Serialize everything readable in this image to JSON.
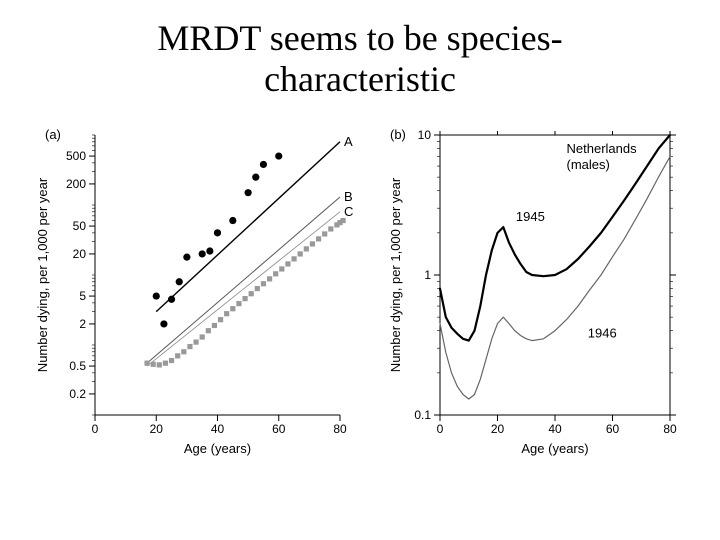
{
  "title_line1": "MRDT seems to be species-",
  "title_line2": "characteristic",
  "panel_a": {
    "tag": "(a)",
    "xlabel": "Age (years)",
    "ylabel": "Number dying, per 1,000 per year",
    "xlim": [
      0,
      80
    ],
    "xticks": [
      0,
      20,
      40,
      60,
      80
    ],
    "ylim_log10": [
      -1.0,
      3.0
    ],
    "yticks": [
      0.2,
      0.5,
      2,
      5,
      20,
      50,
      200,
      500
    ],
    "minor_yticks": [
      0.1,
      0.3,
      0.4,
      0.6,
      0.7,
      0.8,
      0.9,
      1,
      3,
      4,
      6,
      7,
      8,
      9,
      10,
      30,
      40,
      60,
      70,
      80,
      90,
      100,
      300,
      400,
      600,
      700,
      800,
      900,
      1000
    ],
    "series": [
      {
        "name": "A",
        "label": "A",
        "line": {
          "x": [
            20,
            80
          ],
          "y": [
            3.0,
            800
          ],
          "color": "#000000",
          "width": 1.4
        },
        "points": {
          "x": [
            20,
            22.5,
            25,
            27.5,
            30,
            35,
            37.5,
            40,
            45,
            50,
            55,
            60,
            52.5
          ],
          "y": [
            5,
            2,
            4.5,
            8,
            18,
            20,
            22,
            40,
            60,
            150,
            380,
            500,
            250
          ],
          "marker": "circle",
          "size": 3.6,
          "color": "#000000"
        }
      },
      {
        "name": "B",
        "label": "B",
        "line": {
          "x": [
            17,
            80
          ],
          "y": [
            0.55,
            130
          ],
          "color": "#555555",
          "width": 1.0
        }
      },
      {
        "name": "C",
        "label": "C",
        "line": {
          "x": [
            17,
            80
          ],
          "y": [
            0.5,
            80
          ],
          "color": "#888888",
          "width": 0.8
        },
        "points": {
          "x": [
            17,
            19,
            21,
            23,
            25,
            27,
            29,
            31,
            33,
            35,
            37,
            39,
            41,
            43,
            45,
            47,
            49,
            51,
            53,
            55,
            57,
            59,
            61,
            63,
            65,
            67,
            69,
            71,
            73,
            75,
            77,
            79,
            80,
            81
          ],
          "y": [
            0.55,
            0.53,
            0.52,
            0.55,
            0.6,
            0.7,
            0.8,
            0.95,
            1.1,
            1.3,
            1.6,
            1.9,
            2.3,
            2.8,
            3.3,
            3.9,
            4.6,
            5.4,
            6.4,
            7.5,
            8.8,
            10.4,
            12.2,
            14.4,
            17.0,
            20.0,
            23.6,
            27.8,
            32.8,
            38.6,
            45.5,
            52,
            56,
            60
          ],
          "marker": "square",
          "size": 2.6,
          "color": "#999999"
        }
      }
    ],
    "bg": "#ffffff",
    "axis_color": "#000000"
  },
  "panel_b": {
    "tag": "(b)",
    "xlabel": "Age (years)",
    "ylabel": "Number dying, per 1,000 per year",
    "header": "Netherlands\n(males)",
    "xlim": [
      0,
      80
    ],
    "xticks": [
      0,
      20,
      40,
      60,
      80
    ],
    "ylim_log10": [
      -1.0,
      1.0
    ],
    "yticks": [
      0.1,
      1,
      10
    ],
    "yticks_minor": [
      0.2,
      0.3,
      0.4,
      0.5,
      0.6,
      0.7,
      0.8,
      0.9,
      2,
      3,
      4,
      5,
      6,
      7,
      8,
      9
    ],
    "curves": [
      {
        "name": "1945",
        "label": "1945",
        "color": "#000000",
        "width": 2.2,
        "x": [
          0,
          2,
          4,
          6,
          8,
          10,
          12,
          14,
          16,
          18,
          20,
          22,
          24,
          26,
          28,
          30,
          32,
          36,
          40,
          44,
          48,
          52,
          56,
          60,
          64,
          68,
          72,
          76,
          80
        ],
        "y": [
          0.8,
          0.5,
          0.42,
          0.38,
          0.35,
          0.34,
          0.4,
          0.6,
          1.0,
          1.5,
          2.0,
          2.2,
          1.7,
          1.4,
          1.2,
          1.05,
          1.0,
          0.98,
          1.0,
          1.1,
          1.3,
          1.6,
          2.0,
          2.6,
          3.4,
          4.5,
          6.0,
          8.0,
          10.0
        ]
      },
      {
        "name": "1946",
        "label": "1946",
        "color": "#666666",
        "width": 1.2,
        "x": [
          0,
          2,
          4,
          6,
          8,
          10,
          12,
          14,
          16,
          18,
          20,
          22,
          24,
          26,
          28,
          30,
          32,
          36,
          40,
          44,
          48,
          52,
          56,
          60,
          64,
          68,
          72,
          76,
          80
        ],
        "y": [
          0.45,
          0.28,
          0.2,
          0.16,
          0.14,
          0.13,
          0.14,
          0.18,
          0.25,
          0.35,
          0.45,
          0.5,
          0.45,
          0.4,
          0.37,
          0.35,
          0.34,
          0.35,
          0.4,
          0.48,
          0.6,
          0.78,
          1.0,
          1.35,
          1.8,
          2.5,
          3.5,
          5.0,
          7.0
        ]
      }
    ],
    "bg": "#ffffff",
    "axis_color": "#000000"
  }
}
